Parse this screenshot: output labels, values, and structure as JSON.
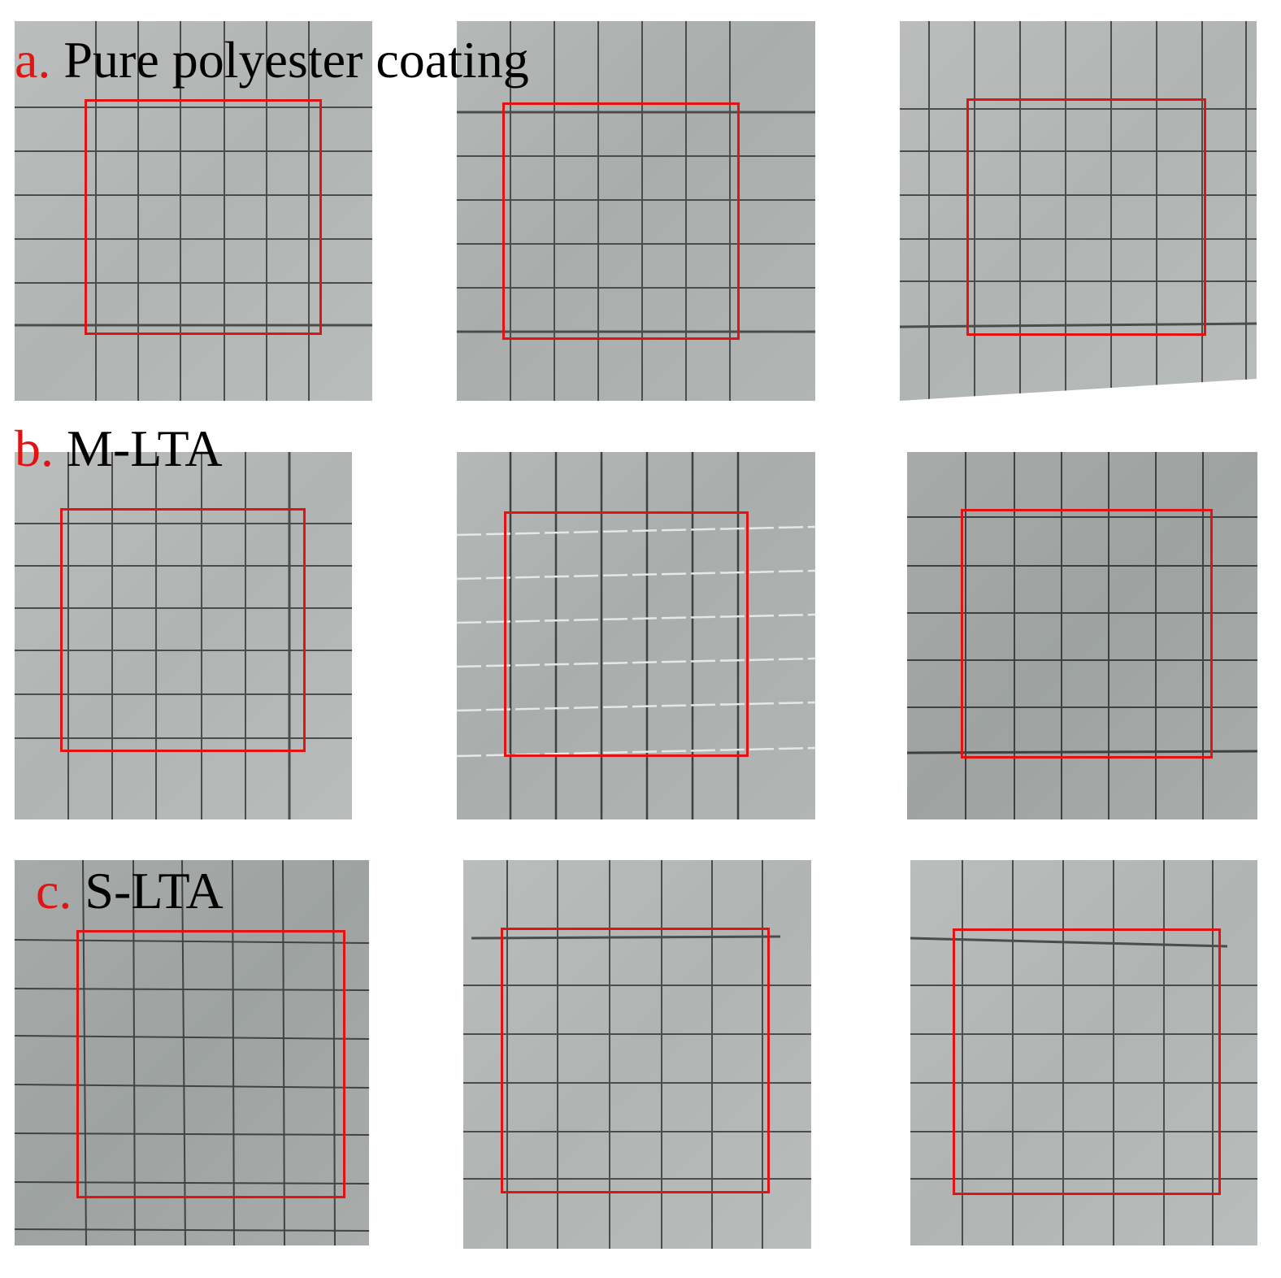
{
  "labels": {
    "a": {
      "letter": "a.",
      "text": " Pure polyester coating"
    },
    "b": {
      "letter": "b.",
      "text": " M-LTA"
    },
    "c": {
      "letter": "c.",
      "text": " S-LTA"
    }
  },
  "colors": {
    "accent_red": "#e21313",
    "label_text": "#000000",
    "grid_line": "#4a4d4c",
    "panel_gray": "#adb1af"
  }
}
